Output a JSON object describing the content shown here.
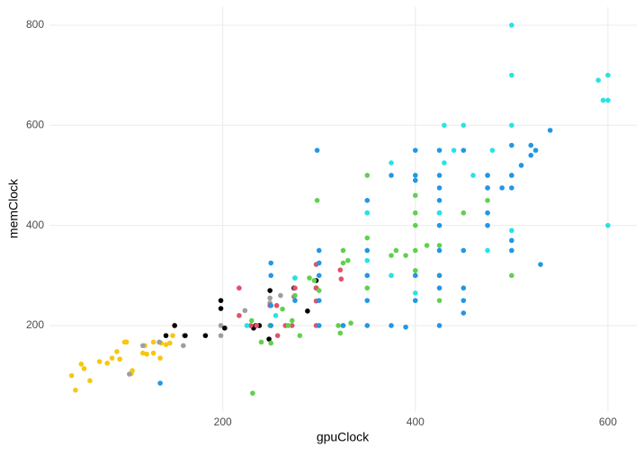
{
  "chart_data": {
    "type": "scatter",
    "x_label": "gpuClock",
    "y_label": "memClock",
    "xlim": [
      20,
      630
    ],
    "ylim": [
      28.25,
      836.75
    ],
    "xticks": [
      200,
      400,
      600
    ],
    "yticks": [
      200,
      400,
      600,
      800
    ],
    "grid": true,
    "series": [
      {
        "color": "#f5c710",
        "x": [
          43,
          47,
          53,
          56,
          62,
          72,
          80,
          85,
          90,
          93,
          98,
          100,
          105,
          106,
          117,
          119,
          121,
          128,
          128,
          136,
          141,
          135,
          145,
          148,
          150
        ],
        "values": [
          100,
          71,
          123,
          114,
          90,
          128,
          125,
          135,
          148,
          133,
          167,
          167,
          104,
          110,
          145,
          160,
          143,
          167,
          145,
          165,
          162,
          135,
          165,
          180,
          200
        ]
      },
      {
        "color": "#9e9e9e",
        "x": [
          103,
          117,
          134,
          159,
          160,
          198,
          198,
          223,
          249,
          249,
          260
        ],
        "values": [
          103,
          160,
          167,
          160,
          180,
          180,
          200,
          230,
          245,
          255,
          260
        ]
      },
      {
        "color": "#000000",
        "x": [
          141,
          150,
          161,
          182,
          198,
          198,
          202,
          232,
          234,
          238,
          248,
          249,
          274,
          288,
          297,
          297
        ],
        "values": [
          180,
          200,
          180,
          180,
          234,
          250,
          195,
          195,
          200,
          200,
          173,
          270,
          275,
          229,
          275,
          290
        ]
      },
      {
        "color": "#df536b",
        "x": [
          217,
          217,
          229,
          235,
          249,
          256,
          257,
          265,
          272,
          274,
          275,
          297,
          297,
          297,
          297,
          322,
          323
        ],
        "values": [
          275,
          220,
          200,
          200,
          240,
          240,
          180,
          200,
          200,
          258,
          275,
          249,
          275,
          322,
          200,
          311,
          293
        ]
      },
      {
        "color": "#61d04f",
        "x": [
          231,
          240,
          249,
          262,
          268,
          272,
          275,
          280,
          290,
          295,
          298,
          300,
          320,
          322,
          325,
          325,
          325,
          330,
          333,
          350,
          350,
          350,
          350,
          375,
          375,
          380,
          390,
          400,
          400,
          400,
          400,
          400,
          400,
          412,
          425,
          425,
          425,
          450,
          475,
          475,
          475,
          500,
          500,
          250,
          230
        ],
        "values": [
          65,
          167,
          200,
          233,
          200,
          210,
          260,
          180,
          295,
          290,
          450,
          270,
          200,
          185,
          200,
          350,
          325,
          330,
          205,
          500,
          375,
          275,
          300,
          340,
          300,
          350,
          340,
          400,
          425,
          460,
          310,
          350,
          300,
          360,
          250,
          300,
          360,
          425,
          450,
          475,
          500,
          500,
          300,
          165,
          210
        ]
      },
      {
        "color": "#2297e6",
        "x": [
          135,
          250,
          250,
          250,
          250,
          275,
          275,
          298,
          300,
          300,
          300,
          300,
          300,
          325,
          350,
          350,
          350,
          350,
          350,
          375,
          375,
          390,
          400,
          400,
          400,
          400,
          400,
          425,
          425,
          425,
          425,
          425,
          425,
          425,
          425,
          425,
          425,
          450,
          450,
          450,
          450,
          450,
          475,
          475,
          475,
          475,
          490,
          500,
          500,
          500,
          500,
          500,
          510,
          520,
          520,
          525,
          530,
          540,
          350
        ],
        "values": [
          85,
          325,
          300,
          240,
          200,
          250,
          295,
          550,
          300,
          350,
          325,
          250,
          200,
          200,
          300,
          425,
          250,
          450,
          200,
          200,
          500,
          197,
          550,
          490,
          500,
          300,
          250,
          550,
          500,
          475,
          450,
          425,
          400,
          350,
          300,
          275,
          200,
          550,
          350,
          275,
          250,
          225,
          500,
          475,
          400,
          425,
          475,
          475,
          560,
          350,
          370,
          500,
          520,
          540,
          560,
          550,
          322,
          590,
          350
        ]
      },
      {
        "color": "#28e2e5",
        "x": [
          275,
          350,
          350,
          375,
          375,
          400,
          430,
          430,
          440,
          450,
          460,
          475,
          480,
          500,
          500,
          500,
          500,
          590,
          595,
          600,
          600,
          600,
          425,
          255,
          225
        ],
        "values": [
          295,
          425,
          330,
          525,
          300,
          265,
          600,
          525,
          550,
          600,
          500,
          350,
          550,
          800,
          700,
          600,
          390,
          690,
          650,
          700,
          650,
          400,
          425,
          220,
          200
        ]
      }
    ]
  }
}
